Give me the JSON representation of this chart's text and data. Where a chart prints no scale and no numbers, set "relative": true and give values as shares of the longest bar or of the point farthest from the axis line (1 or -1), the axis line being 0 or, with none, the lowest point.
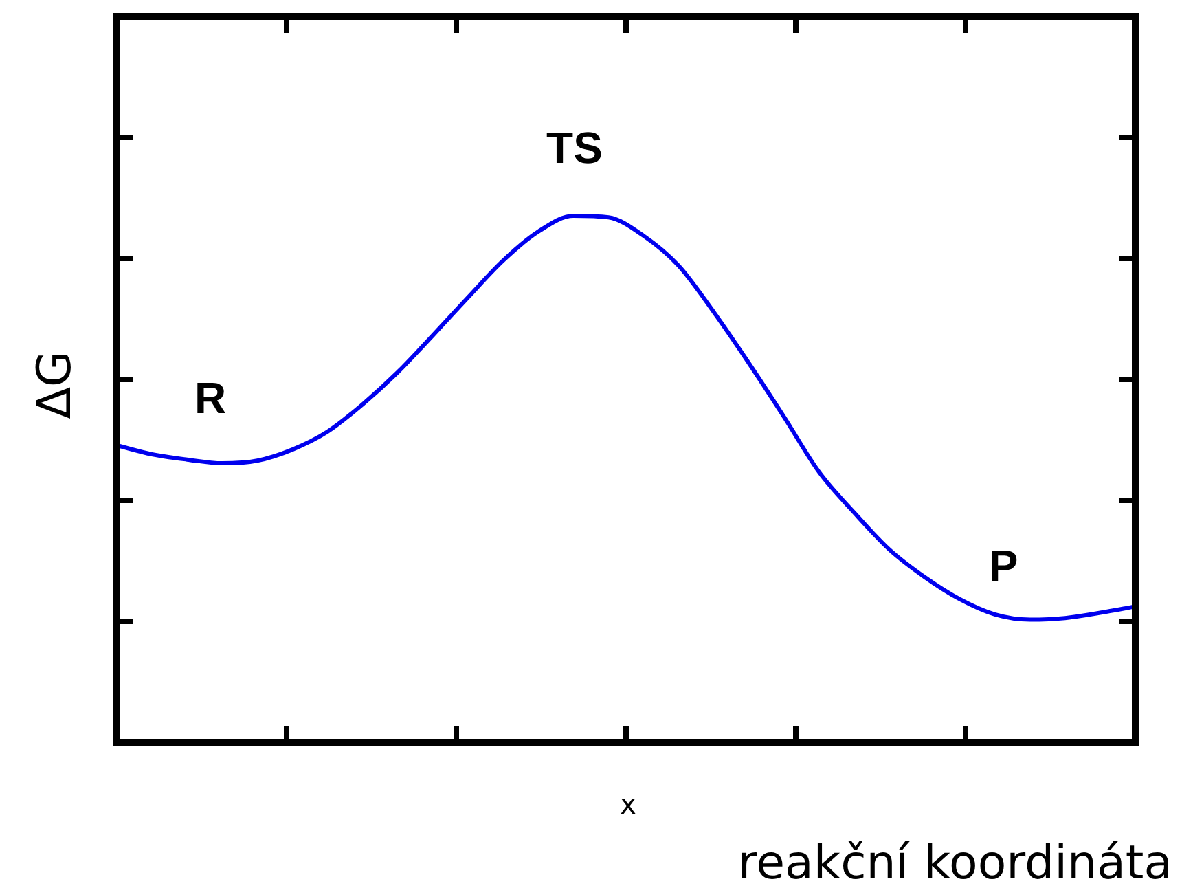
{
  "chart_data": {
    "type": "line",
    "relative": true,
    "xlabel": "x",
    "ylabel": "ΔG",
    "marker": "none",
    "line_style": "solid",
    "legend": false,
    "tick_labels": false,
    "categories": [
      null,
      null,
      null,
      null,
      null,
      null,
      null,
      null,
      null,
      null,
      null,
      null,
      null,
      null,
      null,
      null,
      null,
      null,
      null,
      null,
      null,
      null,
      null,
      null,
      null,
      null,
      null,
      null,
      null,
      null
    ],
    "series": [
      {
        "color": "#0000ee",
        "values": [
          0.564,
          0.547,
          0.537,
          0.53,
          0.535,
          0.556,
          0.59,
          0.642,
          0.703,
          0.773,
          0.845,
          0.915,
          0.97,
          1.0,
          0.997,
          0.962,
          0.905,
          0.817,
          0.72,
          0.618,
          0.513,
          0.436,
          0.366,
          0.314,
          0.272,
          0.243,
          0.233,
          0.236,
          0.246,
          0.258
        ]
      }
    ],
    "annotations": [
      "R",
      "TS",
      "P",
      "reakční koordináta"
    ]
  }
}
